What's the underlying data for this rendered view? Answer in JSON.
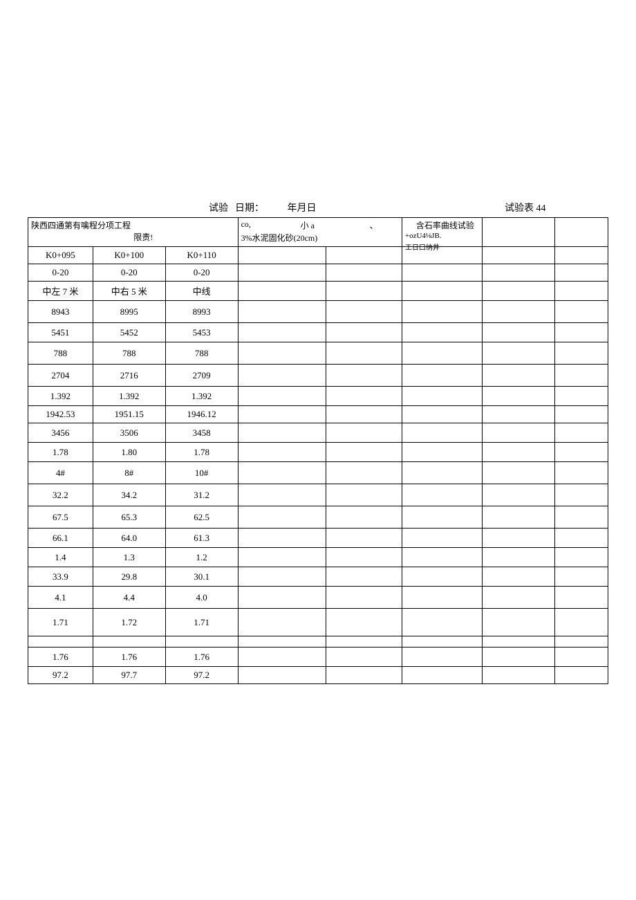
{
  "header": {
    "test_label": "试验",
    "date_label": "日期：",
    "date_value": "年月日",
    "table_num": "试验表 44"
  },
  "top_row": {
    "cell1_line1_a": "陕西四通第有",
    "cell1_line1_b": "噙程分项工程",
    "cell1_line2": "限责!",
    "cell2_frag1": "co,",
    "cell2_frag2": "小 a",
    "cell2_frag3": "、",
    "cell2_frag4": "3%水泥固化砂(20cm)",
    "cell3_frag1": "含石率曲线试验",
    "cell3_frag2": "+ozU4⅛JB.",
    "cell3_frag3": "工日口纳井"
  },
  "column_widths": {
    "c1": 85,
    "c2": 95,
    "c3": 95,
    "c4": 115,
    "c5": 100,
    "c6": 105,
    "c7": 95,
    "c8": 70
  },
  "rows": [
    {
      "h": "short",
      "cells": [
        "K0+095",
        "K0+100",
        "K0+110",
        "",
        "",
        "",
        "",
        ""
      ]
    },
    {
      "h": "short",
      "cells": [
        "0-20",
        "0-20",
        "0-20",
        "",
        "",
        "",
        "",
        ""
      ]
    },
    {
      "h": "short",
      "cells": [
        "中左 7 米",
        "中右 5 米",
        "中线",
        "",
        "",
        "",
        "",
        ""
      ]
    },
    {
      "h": "med",
      "cells": [
        "8943",
        "8995",
        "8993",
        "",
        "",
        "",
        "",
        ""
      ]
    },
    {
      "h": "",
      "cells": [
        "5451",
        "5452",
        "5453",
        "",
        "",
        "",
        "",
        ""
      ]
    },
    {
      "h": "med",
      "cells": [
        "788",
        "788",
        "788",
        "",
        "",
        "",
        "",
        ""
      ]
    },
    {
      "h": "med",
      "cells": [
        "2704",
        "2716",
        "2709",
        "",
        "",
        "",
        "",
        ""
      ]
    },
    {
      "h": "",
      "cells": [
        "1.392",
        "1.392",
        "1.392",
        "",
        "",
        "",
        "",
        ""
      ]
    },
    {
      "h": "short",
      "cells": [
        "1942.53",
        "1951.15",
        "1946.12",
        "",
        "",
        "",
        "",
        ""
      ]
    },
    {
      "h": "",
      "cells": [
        "3456",
        "3506",
        "3458",
        "",
        "",
        "",
        "",
        ""
      ]
    },
    {
      "h": "",
      "cells": [
        "1.78",
        "1.80",
        "1.78",
        "",
        "",
        "",
        "",
        ""
      ]
    },
    {
      "h": "med",
      "cells": [
        "4#",
        "8#",
        "10#",
        "",
        "",
        "",
        "",
        ""
      ]
    },
    {
      "h": "med",
      "cells": [
        "32.2",
        "34.2",
        "31.2",
        "",
        "",
        "",
        "",
        ""
      ]
    },
    {
      "h": "med",
      "cells": [
        "67.5",
        "65.3",
        "62.5",
        "",
        "",
        "",
        "",
        ""
      ]
    },
    {
      "h": "",
      "cells": [
        "66.1",
        "64.0",
        "61.3",
        "",
        "",
        "",
        "",
        ""
      ]
    },
    {
      "h": "",
      "cells": [
        "1.4",
        "1.3",
        "1.2",
        "",
        "",
        "",
        "",
        ""
      ]
    },
    {
      "h": "",
      "cells": [
        "33.9",
        "29.8",
        "30.1",
        "",
        "",
        "",
        "",
        ""
      ]
    },
    {
      "h": "med",
      "cells": [
        "4.1",
        "4.4",
        "4.0",
        "",
        "",
        "",
        "",
        ""
      ]
    },
    {
      "h": "tall",
      "cells": [
        "1.71",
        "1.72",
        "1.71",
        "",
        "",
        "",
        "",
        ""
      ]
    },
    {
      "h": "thin",
      "cells": [
        "",
        "",
        "",
        "",
        "",
        "",
        "",
        ""
      ]
    },
    {
      "h": "",
      "cells": [
        "1.76",
        "1.76",
        "1.76",
        "",
        "",
        "",
        "",
        ""
      ]
    },
    {
      "h": "short",
      "cells": [
        "97.2",
        "97.7",
        "97.2",
        "",
        "",
        "",
        "",
        ""
      ]
    }
  ]
}
